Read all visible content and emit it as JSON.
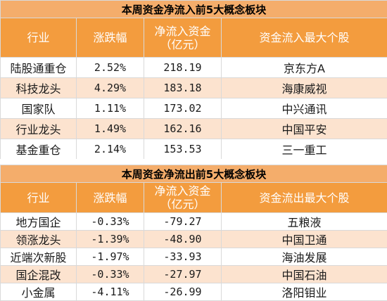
{
  "inflow": {
    "title": "本周资金净流入前5大概念板块",
    "headers": [
      "行业",
      "涨跌幅",
      "净流入资金\n（亿元）",
      "资金流入最大个股"
    ],
    "rows": [
      {
        "sector": "陆股通重仓",
        "change": "2.52%",
        "amount": "218.19",
        "stock": "京东方A"
      },
      {
        "sector": "科技龙头",
        "change": "4.29%",
        "amount": "183.18",
        "stock": "海康威视"
      },
      {
        "sector": "国家队",
        "change": "1.11%",
        "amount": "173.02",
        "stock": "中兴通讯"
      },
      {
        "sector": "行业龙头",
        "change": "1.49%",
        "amount": "162.16",
        "stock": "中国平安"
      },
      {
        "sector": "基金重仓",
        "change": "2.14%",
        "amount": "153.53",
        "stock": "三一重工"
      }
    ]
  },
  "outflow": {
    "title": "本周资金净流出前5大概念板块",
    "headers": [
      "行业",
      "涨跌幅",
      "净流入资金\n（亿元）",
      "资金流出最大个股"
    ],
    "rows": [
      {
        "sector": "地方国企",
        "change": "-0.33%",
        "amount": "-79.27",
        "stock": "五粮液"
      },
      {
        "sector": "领涨龙头",
        "change": "-1.39%",
        "amount": "-48.90",
        "stock": "中国卫通"
      },
      {
        "sector": "近端次新股",
        "change": "-1.97%",
        "amount": "-33.93",
        "stock": "海油发展"
      },
      {
        "sector": "国企混改",
        "change": "-0.33%",
        "amount": "-27.97",
        "stock": "中国石油"
      },
      {
        "sector": "小金属",
        "change": "-4.11%",
        "amount": "-26.99",
        "stock": "洛阳钼业"
      }
    ]
  }
}
